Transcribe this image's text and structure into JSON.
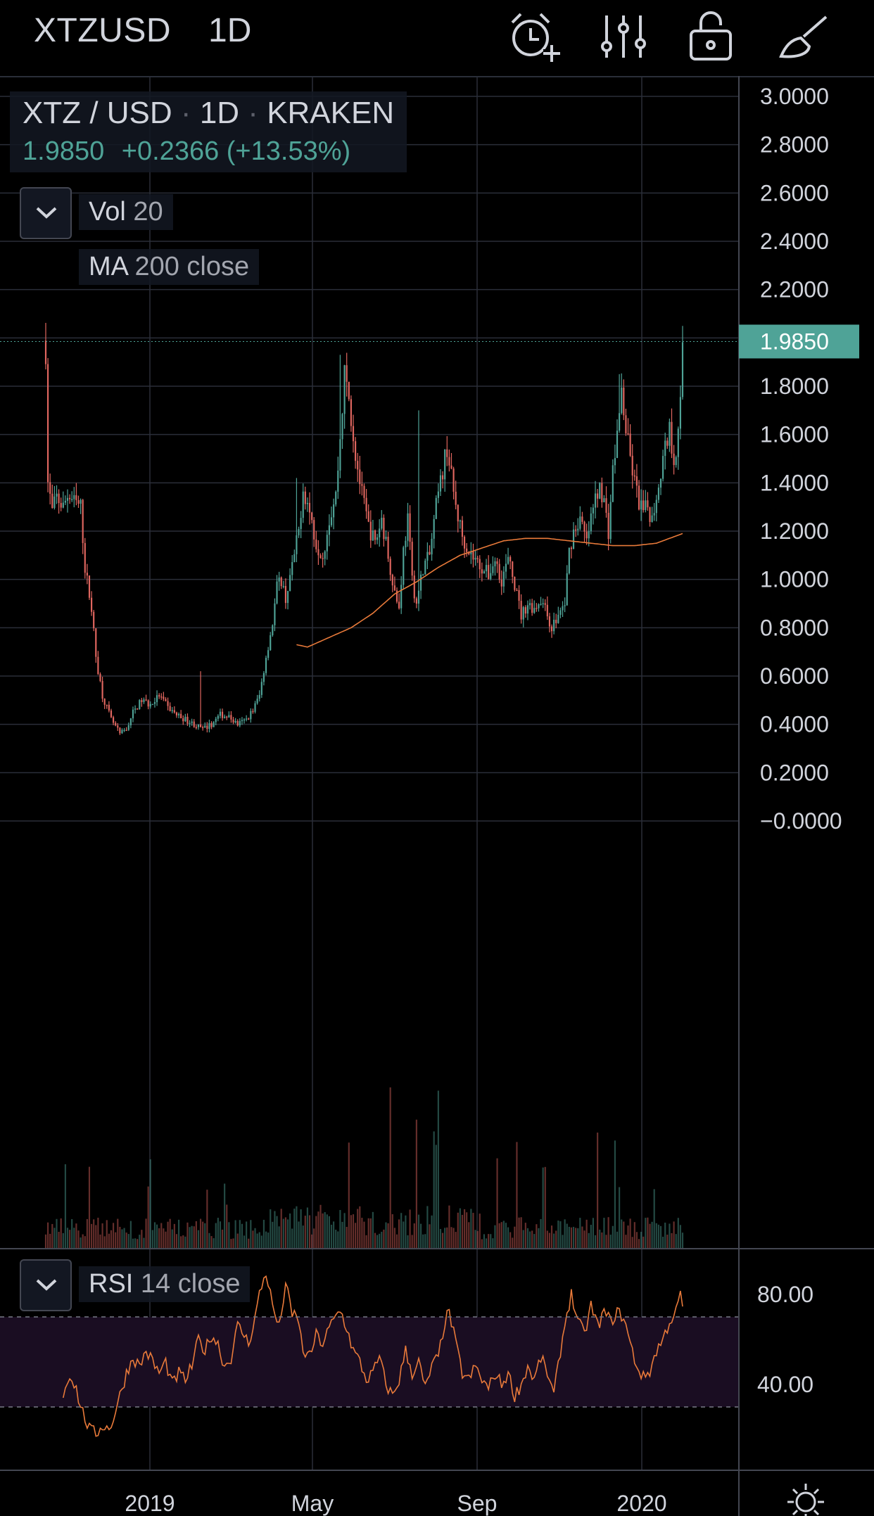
{
  "header": {
    "symbol": "XTZUSD",
    "timeframe": "1D",
    "icons": [
      "alarm-add-icon",
      "indicators-sliders-icon",
      "lock-open-icon",
      "drawing-brush-icon"
    ]
  },
  "legend": {
    "pair": "XTZ / USD",
    "sep1": "·",
    "interval": "1D",
    "sep2": "·",
    "exchange": "KRAKEN",
    "last": "1.9850",
    "change": "+0.2366",
    "change_pct": "(+13.53%)"
  },
  "indicators": {
    "vol_name": "Vol",
    "vol_param": "20",
    "ma_name": "MA",
    "ma_param": "200 close",
    "rsi_name": "RSI",
    "rsi_param": "14 close"
  },
  "colors": {
    "up": "#4fa397",
    "down": "#e0665f",
    "ma": "#e97a3a",
    "rsi": "#e97a3a",
    "grid": "#2a2e39",
    "rsi_band": "#1a0d22"
  },
  "chart_data": [
    {
      "type": "candlestick",
      "title": "XTZ / USD · 1D · KRAKEN",
      "last_price_label": "1.9850",
      "y_ticks": [
        "3.0000",
        "2.8000",
        "2.6000",
        "2.4000",
        "2.2000",
        "1.8000",
        "1.6000",
        "1.4000",
        "1.2000",
        "1.0000",
        "0.8000",
        "0.6000",
        "0.4000",
        "0.2000",
        "−0.0000"
      ],
      "x_ticks": [
        "2019",
        "May",
        "Sep",
        "2020"
      ],
      "ylim": [
        -0.22,
        3.05
      ],
      "price_anchors": [
        [
          0,
          1.95
        ],
        [
          1,
          1.4
        ],
        [
          3,
          1.28
        ],
        [
          5,
          1.34
        ],
        [
          8,
          1.3
        ],
        [
          10,
          1.35
        ],
        [
          13,
          1.32
        ],
        [
          16,
          1.3
        ],
        [
          18,
          1.05
        ],
        [
          21,
          0.88
        ],
        [
          23,
          0.68
        ],
        [
          26,
          0.52
        ],
        [
          30,
          0.42
        ],
        [
          34,
          0.36
        ],
        [
          37,
          0.38
        ],
        [
          40,
          0.45
        ],
        [
          44,
          0.5
        ],
        [
          48,
          0.48
        ],
        [
          52,
          0.52
        ],
        [
          56,
          0.47
        ],
        [
          60,
          0.44
        ],
        [
          64,
          0.42
        ],
        [
          68,
          0.4
        ],
        [
          72,
          0.38
        ],
        [
          76,
          0.4
        ],
        [
          80,
          0.44
        ],
        [
          84,
          0.43
        ],
        [
          88,
          0.4
        ],
        [
          92,
          0.42
        ],
        [
          95,
          0.46
        ],
        [
          98,
          0.52
        ],
        [
          101,
          0.68
        ],
        [
          104,
          0.82
        ],
        [
          106,
          0.97
        ],
        [
          108,
          1.0
        ],
        [
          110,
          0.92
        ],
        [
          113,
          1.05
        ],
        [
          116,
          1.2
        ],
        [
          118,
          1.38
        ],
        [
          121,
          1.28
        ],
        [
          124,
          1.15
        ],
        [
          127,
          1.1
        ],
        [
          130,
          1.25
        ],
        [
          133,
          1.35
        ],
        [
          135,
          1.58
        ],
        [
          137,
          1.85
        ],
        [
          139,
          1.75
        ],
        [
          142,
          1.52
        ],
        [
          145,
          1.35
        ],
        [
          148,
          1.22
        ],
        [
          151,
          1.15
        ],
        [
          154,
          1.25
        ],
        [
          157,
          1.1
        ],
        [
          160,
          0.95
        ],
        [
          162,
          0.88
        ],
        [
          164,
          1.12
        ],
        [
          166,
          1.25
        ],
        [
          168,
          1.0
        ],
        [
          170,
          0.9
        ],
        [
          173,
          1.05
        ],
        [
          176,
          1.1
        ],
        [
          179,
          1.3
        ],
        [
          182,
          1.45
        ],
        [
          184,
          1.55
        ],
        [
          186,
          1.42
        ],
        [
          188,
          1.3
        ],
        [
          191,
          1.18
        ],
        [
          194,
          1.12
        ],
        [
          197,
          1.08
        ],
        [
          200,
          1.05
        ],
        [
          203,
          1.02
        ],
        [
          206,
          1.08
        ],
        [
          209,
          1.0
        ],
        [
          212,
          1.08
        ],
        [
          215,
          0.98
        ],
        [
          218,
          0.85
        ],
        [
          221,
          0.9
        ],
        [
          224,
          0.88
        ],
        [
          227,
          0.92
        ],
        [
          230,
          0.85
        ],
        [
          232,
          0.8
        ],
        [
          235,
          0.85
        ],
        [
          238,
          0.9
        ],
        [
          240,
          1.12
        ],
        [
          242,
          1.2
        ],
        [
          245,
          1.25
        ],
        [
          248,
          1.15
        ],
        [
          250,
          1.25
        ],
        [
          252,
          1.33
        ],
        [
          254,
          1.4
        ],
        [
          256,
          1.32
        ],
        [
          258,
          1.2
        ],
        [
          260,
          1.45
        ],
        [
          262,
          1.6
        ],
        [
          264,
          1.78
        ],
        [
          266,
          1.62
        ],
        [
          268,
          1.5
        ],
        [
          270,
          1.4
        ],
        [
          272,
          1.32
        ],
        [
          274,
          1.28
        ],
        [
          276,
          1.3
        ],
        [
          278,
          1.25
        ],
        [
          280,
          1.35
        ],
        [
          282,
          1.45
        ],
        [
          284,
          1.55
        ],
        [
          286,
          1.62
        ],
        [
          288,
          1.5
        ],
        [
          290,
          1.6
        ],
        [
          291,
          1.72
        ],
        [
          292,
          1.985
        ]
      ],
      "spikes": [
        [
          0,
          1.95
        ],
        [
          71,
          0.62
        ],
        [
          115,
          1.42
        ],
        [
          135,
          1.93
        ],
        [
          171,
          1.7
        ],
        [
          263,
          1.85
        ],
        [
          292,
          1.985
        ]
      ],
      "ma200": {
        "name": "MA 200 close",
        "start_index": 115,
        "anchors": [
          [
            115,
            0.73
          ],
          [
            120,
            0.72
          ],
          [
            130,
            0.76
          ],
          [
            140,
            0.8
          ],
          [
            150,
            0.86
          ],
          [
            160,
            0.94
          ],
          [
            170,
            0.99
          ],
          [
            180,
            1.05
          ],
          [
            190,
            1.1
          ],
          [
            200,
            1.13
          ],
          [
            210,
            1.16
          ],
          [
            220,
            1.17
          ],
          [
            230,
            1.17
          ],
          [
            240,
            1.16
          ],
          [
            250,
            1.15
          ],
          [
            260,
            1.14
          ],
          [
            270,
            1.14
          ],
          [
            280,
            1.15
          ],
          [
            292,
            1.19
          ]
        ]
      }
    },
    {
      "type": "line",
      "name": "RSI 14 close",
      "y_ticks": [
        "80.00",
        "40.00"
      ],
      "ylim": [
        15,
        95
      ],
      "bands": [
        70,
        30
      ],
      "anchors": [
        [
          8,
          35
        ],
        [
          11,
          45
        ],
        [
          14,
          38
        ],
        [
          16,
          30
        ],
        [
          18,
          25
        ],
        [
          20,
          20
        ],
        [
          23,
          18
        ],
        [
          26,
          22
        ],
        [
          29,
          20
        ],
        [
          31,
          25
        ],
        [
          34,
          35
        ],
        [
          37,
          45
        ],
        [
          40,
          52
        ],
        [
          43,
          48
        ],
        [
          46,
          55
        ],
        [
          49,
          50
        ],
        [
          52,
          45
        ],
        [
          55,
          50
        ],
        [
          58,
          40
        ],
        [
          61,
          45
        ],
        [
          64,
          42
        ],
        [
          67,
          48
        ],
        [
          70,
          60
        ],
        [
          73,
          55
        ],
        [
          76,
          62
        ],
        [
          79,
          58
        ],
        [
          82,
          48
        ],
        [
          85,
          52
        ],
        [
          88,
          66
        ],
        [
          91,
          62
        ],
        [
          93,
          58
        ],
        [
          96,
          70
        ],
        [
          98,
          80
        ],
        [
          101,
          90
        ],
        [
          104,
          75
        ],
        [
          107,
          65
        ],
        [
          110,
          85
        ],
        [
          113,
          70
        ],
        [
          115,
          72
        ],
        [
          118,
          55
        ],
        [
          121,
          52
        ],
        [
          124,
          62
        ],
        [
          127,
          58
        ],
        [
          130,
          65
        ],
        [
          133,
          70
        ],
        [
          135,
          73
        ],
        [
          138,
          65
        ],
        [
          141,
          55
        ],
        [
          144,
          50
        ],
        [
          147,
          42
        ],
        [
          150,
          45
        ],
        [
          153,
          52
        ],
        [
          156,
          40
        ],
        [
          159,
          35
        ],
        [
          162,
          42
        ],
        [
          165,
          55
        ],
        [
          168,
          45
        ],
        [
          171,
          50
        ],
        [
          174,
          38
        ],
        [
          177,
          48
        ],
        [
          180,
          52
        ],
        [
          183,
          68
        ],
        [
          185,
          72
        ],
        [
          188,
          58
        ],
        [
          191,
          45
        ],
        [
          194,
          42
        ],
        [
          197,
          48
        ],
        [
          200,
          42
        ],
        [
          203,
          38
        ],
        [
          206,
          45
        ],
        [
          209,
          40
        ],
        [
          212,
          45
        ],
        [
          215,
          35
        ],
        [
          218,
          40
        ],
        [
          221,
          48
        ],
        [
          224,
          42
        ],
        [
          227,
          52
        ],
        [
          230,
          45
        ],
        [
          233,
          35
        ],
        [
          236,
          55
        ],
        [
          239,
          72
        ],
        [
          241,
          80
        ],
        [
          244,
          68
        ],
        [
          247,
          62
        ],
        [
          250,
          75
        ],
        [
          253,
          66
        ],
        [
          256,
          72
        ],
        [
          259,
          68
        ],
        [
          262,
          72
        ],
        [
          265,
          70
        ],
        [
          268,
          58
        ],
        [
          271,
          48
        ],
        [
          274,
          43
        ],
        [
          277,
          46
        ],
        [
          280,
          55
        ],
        [
          283,
          60
        ],
        [
          286,
          68
        ],
        [
          289,
          72
        ],
        [
          291,
          80
        ],
        [
          292,
          75
        ]
      ]
    }
  ]
}
